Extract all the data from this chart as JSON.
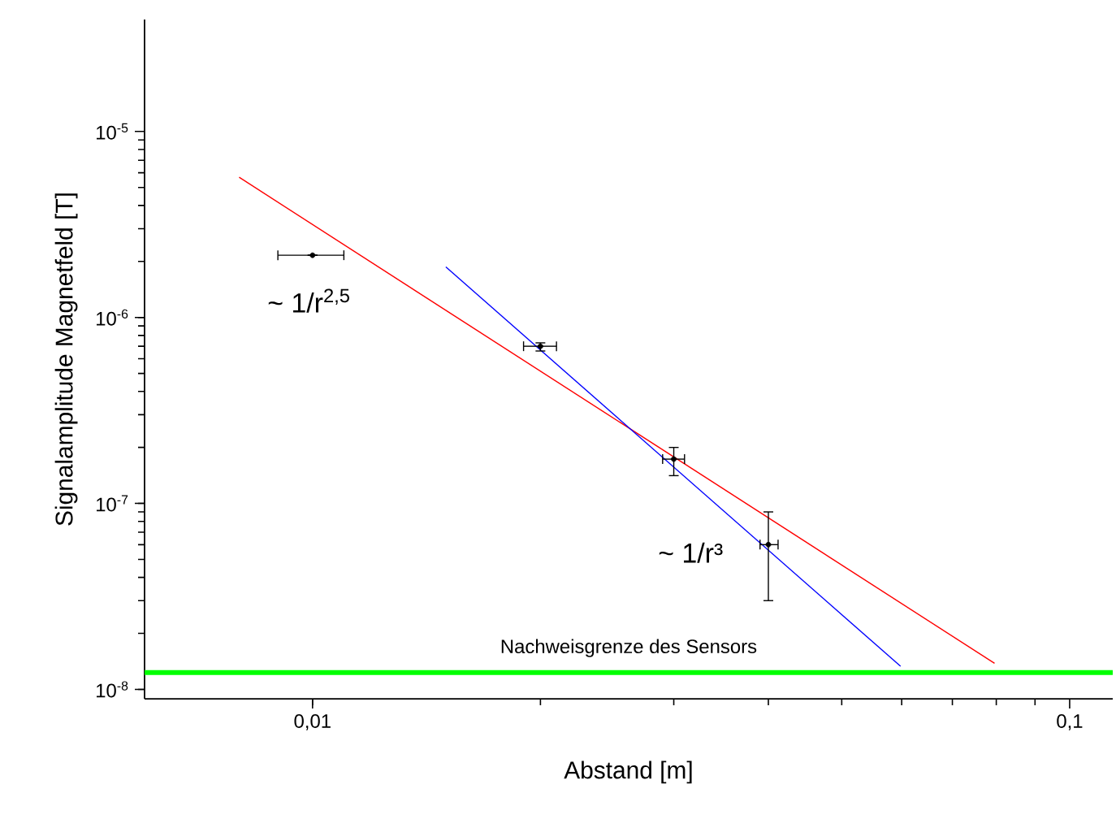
{
  "chart_data": {
    "type": "scatter",
    "xlabel": "Abstand [m]",
    "ylabel": "Signalamplitude Magnetfeld [T]",
    "log": "xy",
    "grid": false,
    "xlim": [
      0.006,
      0.114
    ],
    "ylim": [
      8.9e-09,
      4e-05
    ],
    "xticks": [
      {
        "value": 0.01,
        "label": "0,01"
      },
      {
        "value": 0.1,
        "label": "0,1"
      }
    ],
    "yticks": [
      {
        "value": 1e-08,
        "label": "10$^{-8}$"
      },
      {
        "value": 1e-07,
        "label": "10$^{-7}$"
      },
      {
        "value": 1e-06,
        "label": "10$^{-6}$"
      },
      {
        "value": 1e-05,
        "label": "10$^{-5}$"
      }
    ],
    "series": [
      {
        "type": "line",
        "color": "#ff0000",
        "marker": "none",
        "line_style": "solid",
        "x": [
          0.008,
          0.0796
        ],
        "values": [
          5.67e-06,
          1.38e-08
        ]
      },
      {
        "type": "line",
        "color": "#0000ff",
        "marker": "none",
        "line_style": "solid",
        "x": [
          0.015,
          0.0598
        ],
        "values": [
          1.87e-06,
          1.33e-08
        ]
      },
      {
        "color": "#000000",
        "marker": "circle",
        "x": [
          0.01,
          0.02,
          0.03,
          0.04
        ],
        "values": [
          2.16e-06,
          7e-07,
          1.73e-07,
          6e-08
        ],
        "errors": [
          null,
          [
            6.6e-07,
            7.3e-07
          ],
          [
            1.41e-07,
            2e-07
          ],
          [
            3e-08,
            9e-08
          ]
        ],
        "xerrors": [
          [
            0.009,
            0.011
          ],
          [
            0.019,
            0.021
          ],
          [
            0.029,
            0.031
          ],
          [
            0.039,
            0.0412
          ]
        ]
      }
    ],
    "ref_lines": [
      {
        "axis": "y",
        "value": 1.23e-08,
        "label": "Nachweisgrenze des Sensors",
        "color": "#00ff00"
      }
    ],
    "annotations": [
      "~ 1/r$^{2,5}$",
      "~ 1/r³"
    ]
  }
}
